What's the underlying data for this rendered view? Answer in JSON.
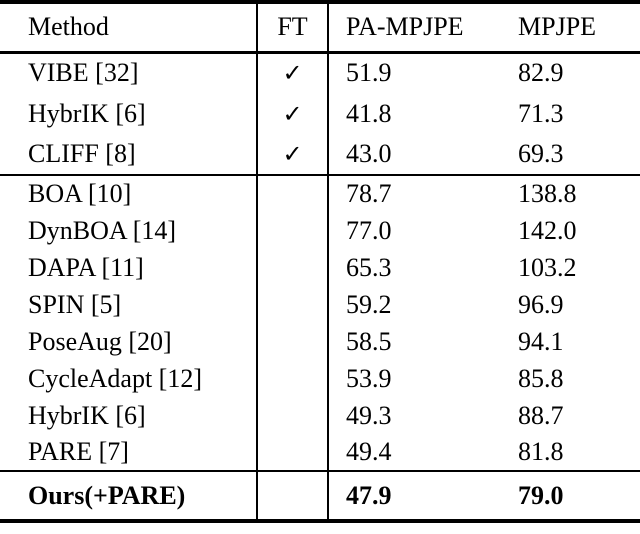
{
  "header": {
    "method": "Method",
    "ft": "FT",
    "pa_mpjpe": "PA-MPJPE",
    "mpjpe": "MPJPE"
  },
  "check_icon": "✓",
  "rows": [
    {
      "method": "VIBE [32]",
      "ft": "✓",
      "pa_mpjpe": "51.9",
      "mpjpe": "82.9"
    },
    {
      "method": "HybrIK [6]",
      "ft": "✓",
      "pa_mpjpe": "41.8",
      "mpjpe": "71.3"
    },
    {
      "method": "CLIFF [8]",
      "ft": "✓",
      "pa_mpjpe": "43.0",
      "mpjpe": "69.3"
    },
    {
      "method": "BOA [10]",
      "ft": "",
      "pa_mpjpe": "78.7",
      "mpjpe": "138.8"
    },
    {
      "method": "DynBOA [14]",
      "ft": "",
      "pa_mpjpe": "77.0",
      "mpjpe": "142.0"
    },
    {
      "method": "DAPA [11]",
      "ft": "",
      "pa_mpjpe": "65.3",
      "mpjpe": "103.2"
    },
    {
      "method": "SPIN [5]",
      "ft": "",
      "pa_mpjpe": "59.2",
      "mpjpe": "96.9"
    },
    {
      "method": "PoseAug [20]",
      "ft": "",
      "pa_mpjpe": "58.5",
      "mpjpe": "94.1"
    },
    {
      "method": "CycleAdapt [12]",
      "ft": "",
      "pa_mpjpe": "53.9",
      "mpjpe": "85.8"
    },
    {
      "method": "HybrIK [6]",
      "ft": "",
      "pa_mpjpe": "49.3",
      "mpjpe": "88.7"
    },
    {
      "method": "PARE [7]",
      "ft": "",
      "pa_mpjpe": "49.4",
      "mpjpe": "81.8"
    },
    {
      "method": "Ours(+PARE)",
      "ft": "",
      "pa_mpjpe": "47.9",
      "mpjpe": "79.0"
    }
  ],
  "colors": {
    "text": "#000000",
    "background": "#ffffff",
    "rule": "#000000"
  }
}
